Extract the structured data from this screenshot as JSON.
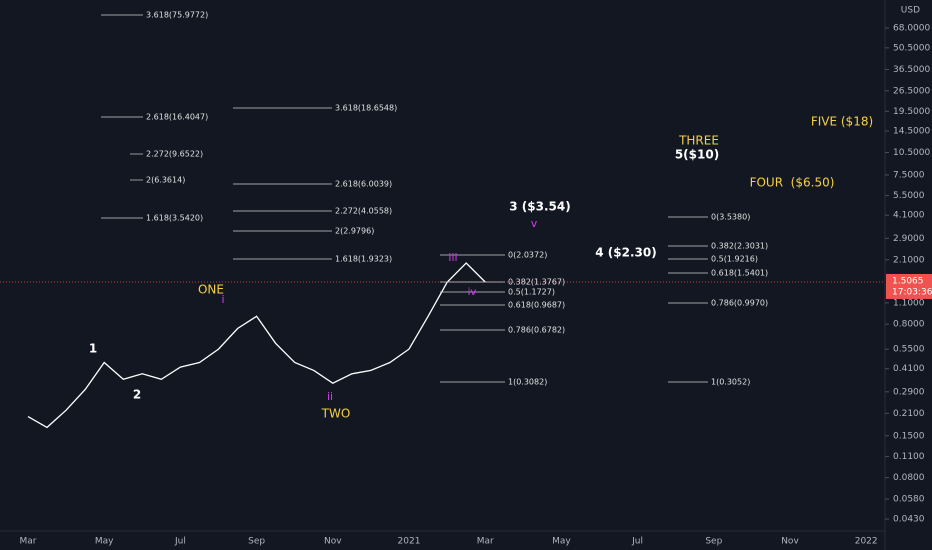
{
  "chart_data": {
    "type": "line",
    "log_scale": true,
    "grid": false,
    "color": "#ffffff",
    "categories": [
      "Mar",
      null,
      null,
      null,
      "May",
      null,
      null,
      null,
      "Jul",
      null,
      null,
      null,
      "Sep",
      null,
      null,
      null,
      "Nov",
      null,
      null,
      null,
      "2021",
      null,
      null,
      null,
      "Mar",
      null,
      null,
      null,
      "May",
      null,
      null,
      null,
      "Jul",
      null,
      null,
      null,
      "Sep",
      null,
      null,
      null,
      "Nov",
      null,
      null,
      null,
      "2022",
      null
    ],
    "values": [
      0.2,
      0.17,
      0.22,
      0.3,
      0.45,
      0.35,
      0.38,
      0.35,
      0.42,
      0.45,
      0.55,
      0.75,
      0.9,
      0.6,
      0.45,
      0.4,
      0.33,
      0.38,
      0.4,
      0.45,
      0.55,
      0.9,
      1.5,
      2.0,
      1.5065,
      null,
      null,
      null,
      null,
      null,
      null,
      null,
      null,
      null,
      null,
      null,
      null,
      null,
      null,
      null,
      null,
      null,
      null,
      null,
      null,
      null
    ],
    "ylim": [
      0.0314,
      103.5
    ],
    "yticks": [
      {
        "value": 68,
        "label": "68.0000"
      },
      {
        "value": 50.5,
        "label": "50.5000"
      },
      {
        "value": 36.5,
        "label": "36.5000"
      },
      {
        "value": 26.5,
        "label": "26.5000"
      },
      {
        "value": 19.5,
        "label": "19.5000"
      },
      {
        "value": 14.5,
        "label": "14.5000"
      },
      {
        "value": 10.5,
        "label": "10.5000"
      },
      {
        "value": 7.5,
        "label": "7.5000"
      },
      {
        "value": 5.5,
        "label": "5.5000"
      },
      {
        "value": 4.1,
        "label": "4.1000"
      },
      {
        "value": 2.9,
        "label": "2.9000"
      },
      {
        "value": 2.1,
        "label": "2.1000"
      },
      {
        "value": 1.1,
        "label": "1.1000"
      },
      {
        "value": 0.8,
        "label": "0.8000"
      },
      {
        "value": 0.55,
        "label": "0.5500"
      },
      {
        "value": 0.41,
        "label": "0.4100"
      },
      {
        "value": 0.29,
        "label": "0.2900"
      },
      {
        "value": 0.21,
        "label": "0.2100"
      },
      {
        "value": 0.15,
        "label": "0.1500"
      },
      {
        "value": 0.11,
        "label": "0.1100"
      },
      {
        "value": 0.08,
        "label": "0.0800"
      },
      {
        "value": 0.058,
        "label": "0.0580"
      },
      {
        "value": 0.043,
        "label": "0.0430"
      }
    ],
    "currency": "USD",
    "last_price": {
      "value": 1.5065,
      "label": "1.5065"
    },
    "countdown": "17:03:36",
    "fib_labels": [
      "3.618(75.9772)",
      "2.618(16.4047)",
      "2.272(9.6522)",
      "2(6.3614)",
      "1.618(3.5420)",
      "3.618(18.6548)",
      "2.618(6.0039)",
      "2.272(4.0558)",
      "2(2.9796)",
      "1.618(1.9323)",
      "0(2.0372)",
      "0.382(1.3767)",
      "0.5(1.1727)",
      "0.618(0.9687)",
      "0.786(0.6782)",
      "1(0.3082)",
      "0(3.5380)",
      "0.382(2.3031)",
      "0.5(1.9216)",
      "0.618(1.5401)",
      "0.786(0.9970)",
      "1(0.3052)"
    ],
    "annotations": [
      "1",
      "2",
      "ONE",
      "i",
      "TWO",
      "ii",
      "iii",
      "iv",
      "3 ($3.54)",
      "v",
      "4 ($2.30)",
      "THREE",
      "5($10)",
      "FOUR  ($6.50)",
      "FIVE ($18)"
    ]
  }
}
